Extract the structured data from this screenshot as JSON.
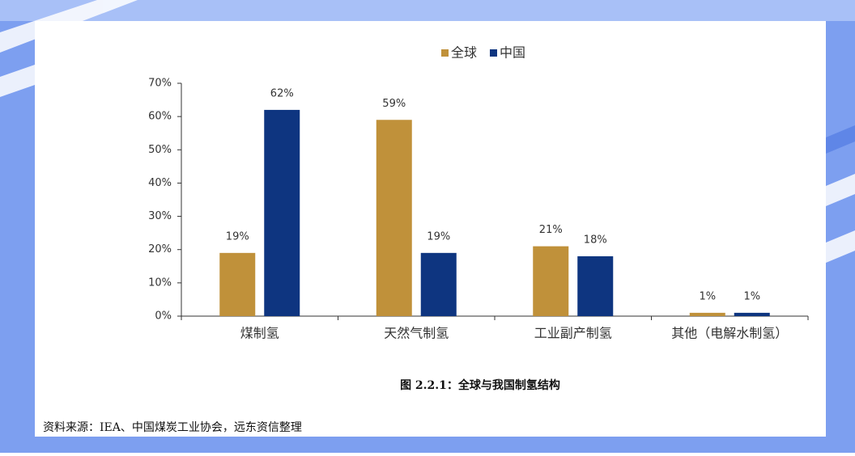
{
  "chart_data": {
    "type": "bar",
    "categories": [
      "煤制氢",
      "天然气制氢",
      "工业副产制氢",
      "其他（电解水制氢）"
    ],
    "series": [
      {
        "name": "全球",
        "color": "#c0913a",
        "values": [
          19,
          59,
          21,
          1
        ],
        "value_labels": [
          "19%",
          "59%",
          "21%",
          "1%"
        ]
      },
      {
        "name": "中国",
        "color": "#0e3580",
        "values": [
          62,
          19,
          18,
          1
        ],
        "value_labels": [
          "62%",
          "19%",
          "18%",
          "1%"
        ]
      }
    ],
    "ylim": [
      0,
      70
    ],
    "yticks": [
      {
        "value": 0,
        "label": "0%"
      },
      {
        "value": 10,
        "label": "10%"
      },
      {
        "value": 20,
        "label": "20%"
      },
      {
        "value": 30,
        "label": "30%"
      },
      {
        "value": 40,
        "label": "40%"
      },
      {
        "value": 50,
        "label": "50%"
      },
      {
        "value": 60,
        "label": "60%"
      },
      {
        "value": 70,
        "label": "70%"
      }
    ],
    "grid": false,
    "legend": "top"
  },
  "caption": "图 2.2.1：全球与我国制氢结构",
  "source": "资料来源：IEA、中国煤炭工业协会，远东资信整理"
}
